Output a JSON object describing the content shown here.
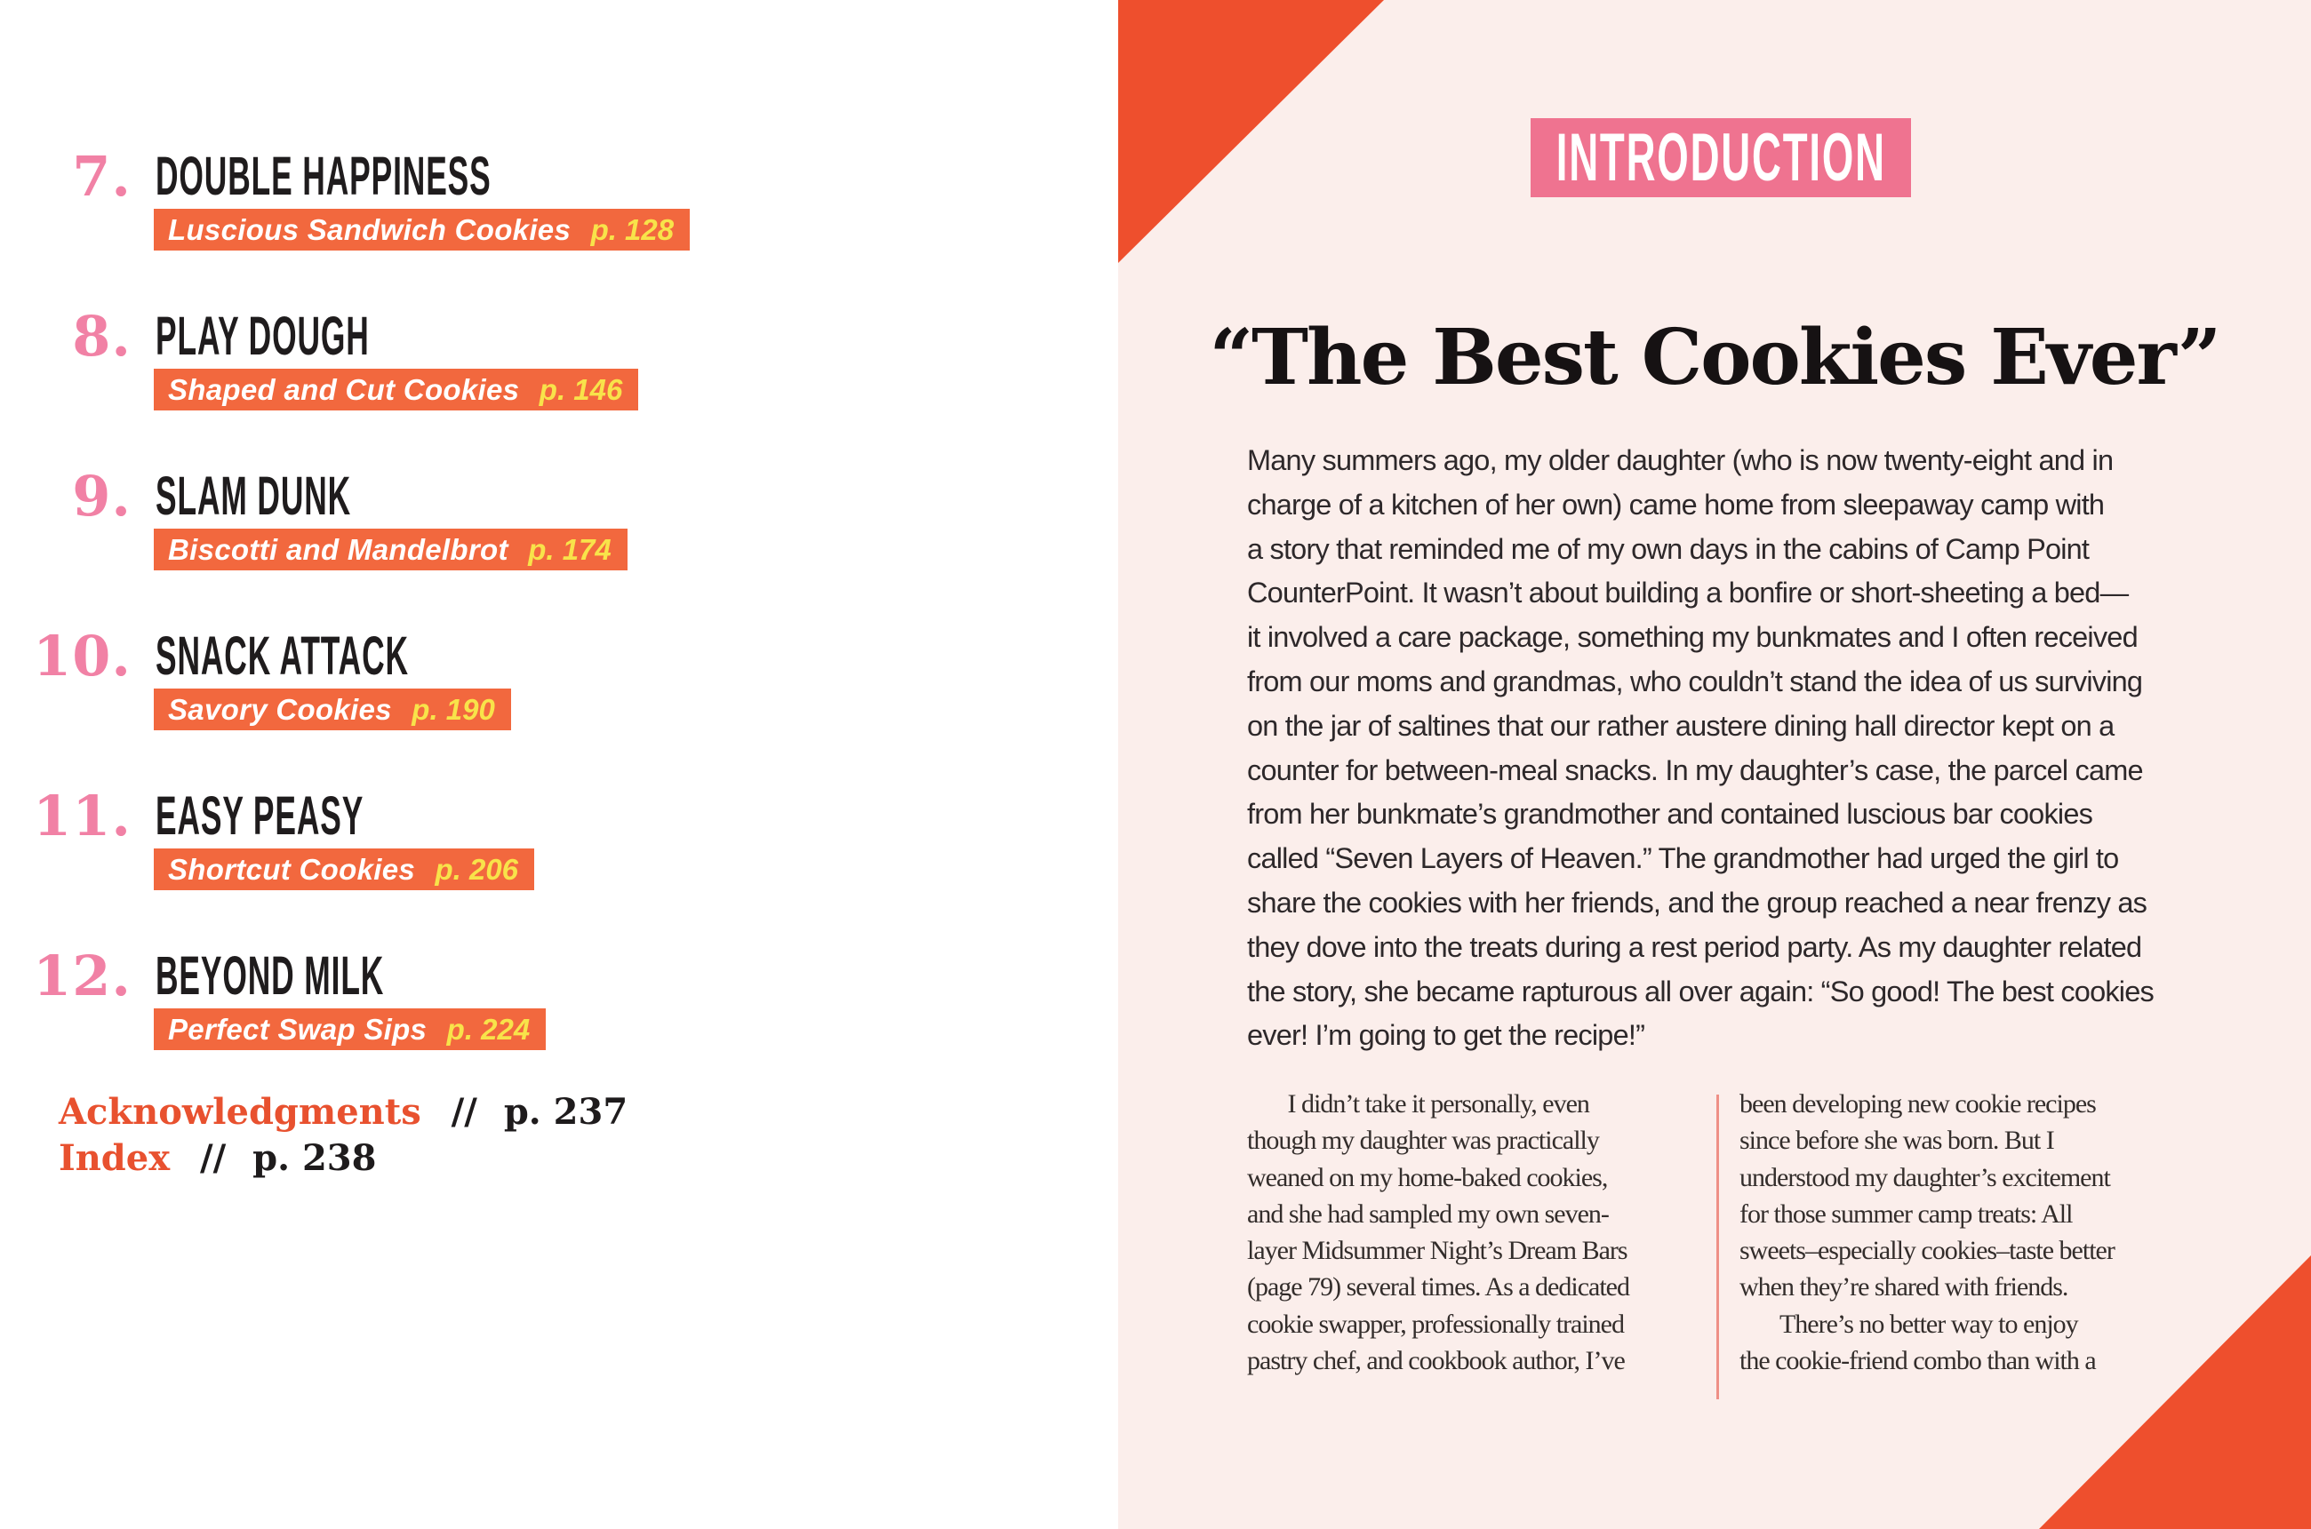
{
  "colors": {
    "orange_bar": "#F2683E",
    "orange_triangle": "#EE4F2D",
    "pink_badge": "#EF7390",
    "pink_number": "#F181A5",
    "yellow_page": "#F8E34A",
    "red_label": "#E8512F",
    "page_bg": "#FBEEEB",
    "divider": "#EF8F86"
  },
  "page_left": {
    "toc_items": [
      {
        "number": "7.",
        "title": "DOUBLE HAPPINESS",
        "subtitle": "Luscious Sandwich Cookies",
        "page": "p. 128"
      },
      {
        "number": "8.",
        "title": "PLAY DOUGH",
        "subtitle": "Shaped and Cut Cookies",
        "page": "p. 146"
      },
      {
        "number": "9.",
        "title": "SLAM DUNK",
        "subtitle": "Biscotti and Mandelbrot",
        "page": "p. 174"
      },
      {
        "number": "10.",
        "title": "SNACK ATTACK",
        "subtitle": "Savory Cookies",
        "page": "p. 190"
      },
      {
        "number": "11.",
        "title": "EASY PEASY",
        "subtitle": "Shortcut Cookies",
        "page": "p. 206"
      },
      {
        "number": "12.",
        "title": "BEYOND MILK",
        "subtitle": "Perfect Swap Sips",
        "page": "p. 224"
      }
    ],
    "extras": [
      {
        "label": "Acknowledgments",
        "sep": "//",
        "page": "p. 237"
      },
      {
        "label": "Index",
        "sep": "//",
        "page": "p. 238"
      }
    ]
  },
  "page_right": {
    "badge": "INTRODUCTION",
    "heading": "“The Best Cookies Ever”",
    "intro_lines": [
      "Many summers ago, my older daughter (who is now twenty-eight and in",
      "charge of a kitchen of her own) came home from sleepaway camp with",
      "a story that reminded me of my own days in the cabins of Camp Point",
      "CounterPoint. It wasn’t about building a bonfire or short-sheeting a bed—",
      "it involved a care package, something my bunkmates and I often received",
      "from our moms and grandmas, who couldn’t stand the idea of us surviving",
      "on the jar of saltines that our rather austere dining hall director kept on a",
      "counter for between-meal snacks. In my daughter’s case, the parcel came",
      "from her bunkmate’s grandmother and contained luscious bar cookies",
      "called “Seven Layers of Heaven.” The grandmother had urged the girl to",
      "share the cookies with her friends, and the group reached a near frenzy as",
      "they dove into the treats during a rest period party. As my daughter related",
      "the story, she became rapturous all over again: “So good! The best cookies",
      "ever! I’m going to get the recipe!”"
    ],
    "columns": {
      "left_lines": [
        "       I didn’t take it personally, even",
        "though my daughter was practically",
        "weaned on my home-baked cookies,",
        "and she had sampled my own seven-",
        "layer Midsummer Night’s Dream Bars",
        "(page 79) several times. As a dedicated",
        "cookie swapper, professionally trained",
        "pastry chef, and cookbook author, I’ve"
      ],
      "right_lines": [
        "been developing new cookie recipes",
        "since before she was born. But I",
        "understood my daughter’s excitement",
        "for those summer camp treats: All",
        "sweets–especially cookies–taste better",
        "when they’re shared with friends.",
        "       There’s no better way to enjoy",
        "the cookie-friend combo than with a"
      ]
    }
  }
}
